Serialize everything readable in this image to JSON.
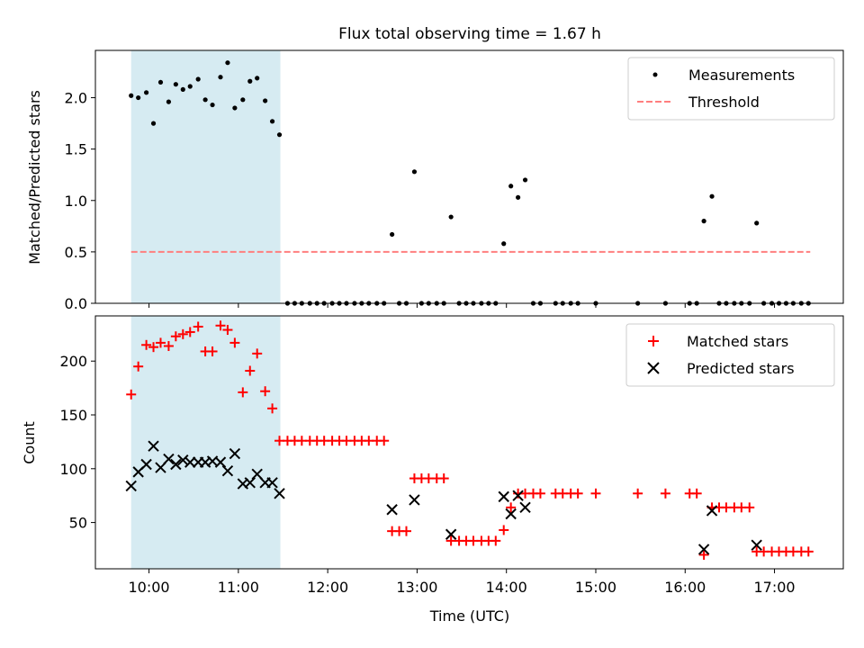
{
  "chart_data": {
    "title": "Flux total observing time = 1.67 h",
    "xlabel": "Time (UTC)",
    "x_unit": "hours UTC",
    "xlim": [
      9.4,
      17.77
    ],
    "xticks": [
      10,
      11,
      12,
      13,
      14,
      15,
      16,
      17
    ],
    "xtick_labels": [
      "10:00",
      "11:00",
      "12:00",
      "13:00",
      "14:00",
      "15:00",
      "16:00",
      "17:00"
    ],
    "highlight_span": [
      9.8,
      11.47
    ],
    "highlight_color": "#add8e6",
    "panels": [
      {
        "type": "scatter",
        "ylabel": "Matched/Predicted stars",
        "ylim": [
          0,
          2.46
        ],
        "yticks": [
          0.0,
          0.5,
          1.0,
          1.5,
          2.0
        ],
        "ytick_labels": [
          "0.0",
          "0.5",
          "1.0",
          "1.5",
          "2.0"
        ],
        "legend_position": "top-right",
        "threshold": {
          "name": "Threshold",
          "value": 0.5,
          "x": [
            9.8,
            17.4
          ],
          "color": "#ff7f7f"
        },
        "series": [
          {
            "name": "Measurements",
            "marker": "dot",
            "color": "#000000",
            "points": [
              [
                9.8,
                2.02
              ],
              [
                9.88,
                2.0
              ],
              [
                9.97,
                2.05
              ],
              [
                10.05,
                1.75
              ],
              [
                10.13,
                2.15
              ],
              [
                10.22,
                1.96
              ],
              [
                10.3,
                2.13
              ],
              [
                10.38,
                2.08
              ],
              [
                10.46,
                2.11
              ],
              [
                10.55,
                2.18
              ],
              [
                10.63,
                1.98
              ],
              [
                10.71,
                1.93
              ],
              [
                10.8,
                2.2
              ],
              [
                10.88,
                2.34
              ],
              [
                10.96,
                1.9
              ],
              [
                11.05,
                1.98
              ],
              [
                11.13,
                2.16
              ],
              [
                11.21,
                2.19
              ],
              [
                11.3,
                1.97
              ],
              [
                11.38,
                1.77
              ],
              [
                11.46,
                1.64
              ],
              [
                11.55,
                0
              ],
              [
                11.63,
                0
              ],
              [
                11.71,
                0
              ],
              [
                11.8,
                0
              ],
              [
                11.88,
                0
              ],
              [
                11.96,
                0
              ],
              [
                12.05,
                0
              ],
              [
                12.13,
                0
              ],
              [
                12.21,
                0
              ],
              [
                12.3,
                0
              ],
              [
                12.38,
                0
              ],
              [
                12.46,
                0
              ],
              [
                12.55,
                0
              ],
              [
                12.63,
                0
              ],
              [
                12.72,
                0.67
              ],
              [
                12.8,
                0
              ],
              [
                12.88,
                0
              ],
              [
                12.97,
                1.28
              ],
              [
                13.05,
                0
              ],
              [
                13.13,
                0
              ],
              [
                13.22,
                0
              ],
              [
                13.3,
                0
              ],
              [
                13.38,
                0.84
              ],
              [
                13.47,
                0
              ],
              [
                13.55,
                0
              ],
              [
                13.63,
                0
              ],
              [
                13.72,
                0
              ],
              [
                13.8,
                0
              ],
              [
                13.88,
                0
              ],
              [
                13.97,
                0.58
              ],
              [
                14.05,
                1.14
              ],
              [
                14.13,
                1.03
              ],
              [
                14.21,
                1.2
              ],
              [
                14.3,
                0
              ],
              [
                14.38,
                0
              ],
              [
                14.55,
                0
              ],
              [
                14.63,
                0
              ],
              [
                14.72,
                0
              ],
              [
                14.8,
                0
              ],
              [
                15.0,
                0
              ],
              [
                15.47,
                0
              ],
              [
                15.78,
                0
              ],
              [
                16.05,
                0
              ],
              [
                16.13,
                0
              ],
              [
                16.21,
                0.8
              ],
              [
                16.3,
                1.04
              ],
              [
                16.38,
                0
              ],
              [
                16.46,
                0
              ],
              [
                16.55,
                0
              ],
              [
                16.63,
                0
              ],
              [
                16.72,
                0
              ],
              [
                16.8,
                0.78
              ],
              [
                16.88,
                0
              ],
              [
                16.97,
                0
              ],
              [
                17.05,
                0
              ],
              [
                17.13,
                0
              ],
              [
                17.21,
                0
              ],
              [
                17.3,
                0
              ],
              [
                17.38,
                0
              ]
            ]
          }
        ]
      },
      {
        "type": "scatter",
        "ylabel": "Count",
        "ylim": [
          7,
          242
        ],
        "yticks": [
          50,
          100,
          150,
          200
        ],
        "ytick_labels": [
          "50",
          "100",
          "150",
          "200"
        ],
        "legend_position": "top-right",
        "series": [
          {
            "name": "Matched stars",
            "marker": "plus",
            "color": "#ff0000",
            "points": [
              [
                9.8,
                169
              ],
              [
                9.88,
                195
              ],
              [
                9.97,
                215
              ],
              [
                10.05,
                213
              ],
              [
                10.13,
                217
              ],
              [
                10.22,
                214
              ],
              [
                10.3,
                223
              ],
              [
                10.38,
                225
              ],
              [
                10.46,
                227
              ],
              [
                10.55,
                232
              ],
              [
                10.63,
                209
              ],
              [
                10.71,
                209
              ],
              [
                10.8,
                233
              ],
              [
                10.88,
                229
              ],
              [
                10.96,
                217
              ],
              [
                11.05,
                171
              ],
              [
                11.13,
                191
              ],
              [
                11.21,
                207
              ],
              [
                11.3,
                172
              ],
              [
                11.38,
                156
              ],
              [
                11.46,
                126
              ],
              [
                11.55,
                126
              ],
              [
                11.63,
                126
              ],
              [
                11.71,
                126
              ],
              [
                11.8,
                126
              ],
              [
                11.88,
                126
              ],
              [
                11.96,
                126
              ],
              [
                12.05,
                126
              ],
              [
                12.13,
                126
              ],
              [
                12.21,
                126
              ],
              [
                12.3,
                126
              ],
              [
                12.38,
                126
              ],
              [
                12.46,
                126
              ],
              [
                12.55,
                126
              ],
              [
                12.63,
                126
              ],
              [
                12.72,
                42
              ],
              [
                12.8,
                42
              ],
              [
                12.88,
                42
              ],
              [
                12.97,
                91
              ],
              [
                13.05,
                91
              ],
              [
                13.13,
                91
              ],
              [
                13.22,
                91
              ],
              [
                13.3,
                91
              ],
              [
                13.38,
                33
              ],
              [
                13.47,
                33
              ],
              [
                13.55,
                33
              ],
              [
                13.63,
                33
              ],
              [
                13.72,
                33
              ],
              [
                13.8,
                33
              ],
              [
                13.88,
                33
              ],
              [
                13.97,
                43
              ],
              [
                14.05,
                64
              ],
              [
                14.13,
                77
              ],
              [
                14.21,
                77
              ],
              [
                14.3,
                77
              ],
              [
                14.38,
                77
              ],
              [
                14.55,
                77
              ],
              [
                14.63,
                77
              ],
              [
                14.72,
                77
              ],
              [
                14.8,
                77
              ],
              [
                15.0,
                77
              ],
              [
                15.47,
                77
              ],
              [
                15.78,
                77
              ],
              [
                16.05,
                77
              ],
              [
                16.13,
                77
              ],
              [
                16.21,
                20
              ],
              [
                16.3,
                64
              ],
              [
                16.38,
                64
              ],
              [
                16.46,
                64
              ],
              [
                16.55,
                64
              ],
              [
                16.63,
                64
              ],
              [
                16.72,
                64
              ],
              [
                16.8,
                23
              ],
              [
                16.88,
                23
              ],
              [
                16.97,
                23
              ],
              [
                17.05,
                23
              ],
              [
                17.13,
                23
              ],
              [
                17.21,
                23
              ],
              [
                17.3,
                23
              ],
              [
                17.38,
                23
              ]
            ]
          },
          {
            "name": "Predicted stars",
            "marker": "x",
            "color": "#000000",
            "points": [
              [
                9.8,
                84
              ],
              [
                9.88,
                97
              ],
              [
                9.97,
                104
              ],
              [
                10.05,
                121
              ],
              [
                10.13,
                101
              ],
              [
                10.22,
                109
              ],
              [
                10.3,
                104
              ],
              [
                10.38,
                108
              ],
              [
                10.46,
                106
              ],
              [
                10.55,
                106
              ],
              [
                10.63,
                106
              ],
              [
                10.71,
                107
              ],
              [
                10.8,
                106
              ],
              [
                10.88,
                98
              ],
              [
                10.96,
                114
              ],
              [
                11.05,
                86
              ],
              [
                11.13,
                87
              ],
              [
                11.21,
                95
              ],
              [
                11.3,
                87
              ],
              [
                11.38,
                87
              ],
              [
                11.46,
                77
              ],
              [
                12.72,
                62
              ],
              [
                12.97,
                71
              ],
              [
                13.38,
                39
              ],
              [
                13.97,
                74
              ],
              [
                14.05,
                58
              ],
              [
                14.13,
                75
              ],
              [
                14.21,
                64
              ],
              [
                16.21,
                25
              ],
              [
                16.3,
                61
              ],
              [
                16.8,
                29
              ]
            ]
          }
        ]
      }
    ]
  }
}
